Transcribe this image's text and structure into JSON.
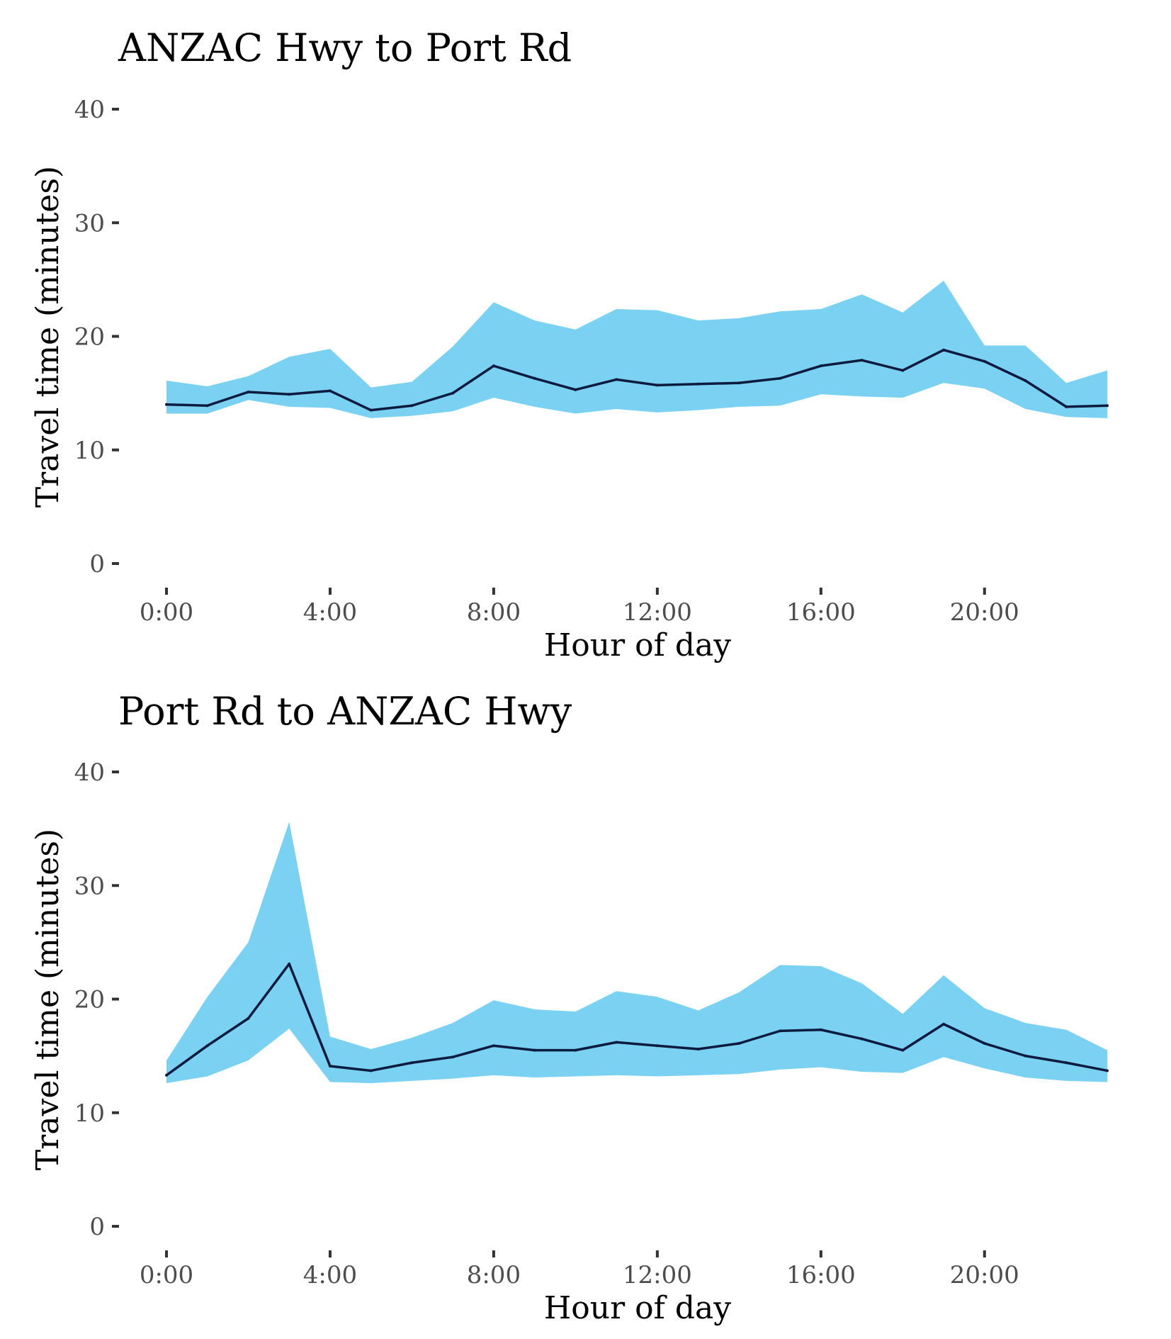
{
  "chart_data": [
    {
      "type": "area",
      "title": "ANZAC Hwy to Port Rd",
      "xlabel": "Hour of day",
      "ylabel": "Travel time (minutes)",
      "x": [
        0,
        1,
        2,
        3,
        4,
        5,
        6,
        7,
        8,
        9,
        10,
        11,
        12,
        13,
        14,
        15,
        16,
        17,
        18,
        19,
        20,
        21,
        22,
        23
      ],
      "xlim": [
        0,
        23
      ],
      "ylim": [
        0,
        40
      ],
      "x_ticks": [
        0,
        4,
        8,
        12,
        16,
        20
      ],
      "x_tick_labels": [
        "0:00",
        "4:00",
        "8:00",
        "12:00",
        "16:00",
        "20:00"
      ],
      "y_ticks": [
        0,
        10,
        20,
        30,
        40
      ],
      "y_tick_labels": [
        "0",
        "10",
        "20",
        "30",
        "40"
      ],
      "grid": false,
      "series": [
        {
          "role": "range",
          "lower": [
            13.2,
            13.2,
            14.4,
            13.8,
            13.7,
            12.8,
            13.0,
            13.4,
            14.6,
            13.8,
            13.2,
            13.6,
            13.3,
            13.5,
            13.8,
            13.9,
            14.9,
            14.7,
            14.6,
            15.9,
            15.4,
            13.6,
            12.9,
            12.8
          ],
          "upper": [
            16.1,
            15.6,
            16.5,
            18.2,
            18.9,
            15.5,
            16.0,
            19.1,
            23.0,
            21.4,
            20.6,
            22.4,
            22.3,
            21.4,
            21.6,
            22.2,
            22.4,
            23.7,
            22.1,
            24.9,
            19.2,
            19.2,
            15.9,
            17.0
          ]
        },
        {
          "role": "median",
          "values": [
            14.0,
            13.9,
            15.1,
            14.9,
            15.2,
            13.5,
            13.9,
            15.0,
            17.4,
            16.3,
            15.3,
            16.2,
            15.7,
            15.8,
            15.9,
            16.3,
            17.4,
            17.9,
            17.0,
            18.8,
            17.8,
            16.1,
            13.8,
            13.9
          ]
        }
      ],
      "colors": {
        "band": "#7ad1f2",
        "line": "#0d1b3e"
      }
    },
    {
      "type": "area",
      "title": "Port Rd to ANZAC Hwy",
      "xlabel": "Hour of day",
      "ylabel": "Travel time (minutes)",
      "x": [
        0,
        1,
        2,
        3,
        4,
        5,
        6,
        7,
        8,
        9,
        10,
        11,
        12,
        13,
        14,
        15,
        16,
        17,
        18,
        19,
        20,
        21,
        22,
        23
      ],
      "xlim": [
        0,
        23
      ],
      "ylim": [
        0,
        40
      ],
      "x_ticks": [
        0,
        4,
        8,
        12,
        16,
        20
      ],
      "x_tick_labels": [
        "0:00",
        "4:00",
        "8:00",
        "12:00",
        "16:00",
        "20:00"
      ],
      "y_ticks": [
        0,
        10,
        20,
        30,
        40
      ],
      "y_tick_labels": [
        "0",
        "10",
        "20",
        "30",
        "40"
      ],
      "grid": false,
      "series": [
        {
          "role": "range",
          "lower": [
            12.6,
            13.2,
            14.6,
            17.4,
            12.7,
            12.6,
            12.8,
            13.0,
            13.3,
            13.1,
            13.2,
            13.3,
            13.2,
            13.3,
            13.4,
            13.8,
            14.0,
            13.6,
            13.5,
            14.9,
            13.9,
            13.1,
            12.8,
            12.7
          ],
          "upper": [
            14.6,
            20.2,
            25.0,
            35.6,
            16.7,
            15.6,
            16.6,
            17.9,
            19.9,
            19.1,
            18.9,
            20.7,
            20.2,
            19.0,
            20.6,
            23.0,
            22.9,
            21.4,
            18.7,
            22.1,
            19.2,
            17.9,
            17.3,
            15.5
          ]
        },
        {
          "role": "median",
          "values": [
            13.3,
            15.9,
            18.3,
            23.1,
            14.1,
            13.7,
            14.4,
            14.9,
            15.9,
            15.5,
            15.5,
            16.2,
            15.9,
            15.6,
            16.1,
            17.2,
            17.3,
            16.5,
            15.5,
            17.8,
            16.1,
            15.0,
            14.4,
            13.7
          ]
        }
      ],
      "colors": {
        "band": "#7ad1f2",
        "line": "#0d1b3e"
      }
    }
  ]
}
